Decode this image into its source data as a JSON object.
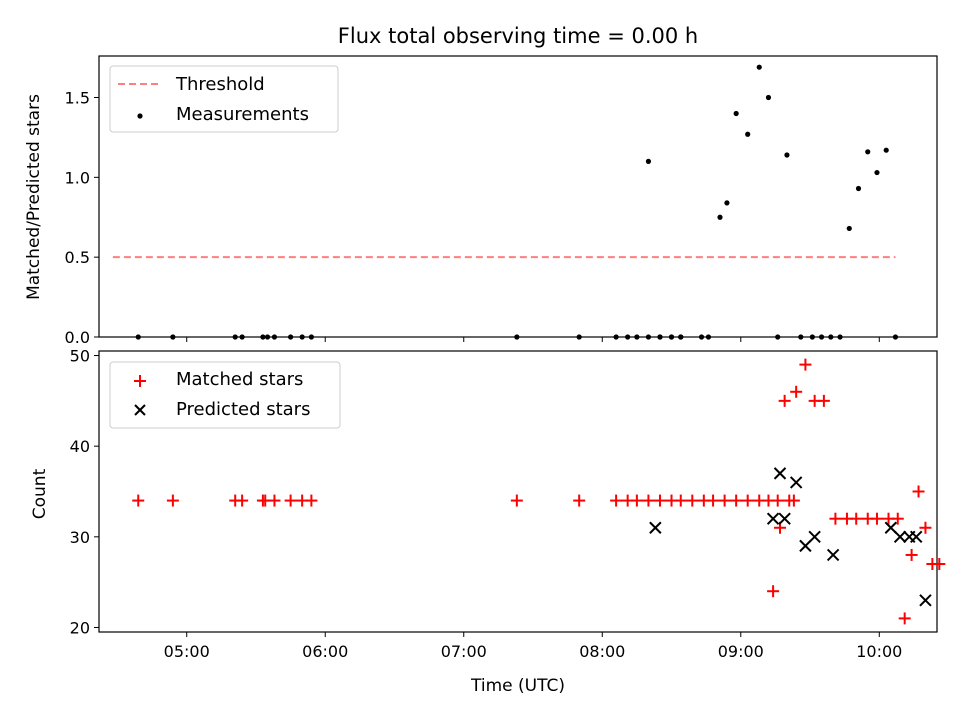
{
  "colors": {
    "threshold": "#ff7f7f",
    "measurement": "#000000",
    "matched": "#ff0000",
    "predicted": "#000000"
  },
  "chart_data": [
    {
      "type": "scatter",
      "title": "Flux total observing time = 0.00 h",
      "xlabel": "",
      "ylabel": "Matched/Predicted stars",
      "xlim": [
        "04:22",
        "10:25"
      ],
      "ylim": [
        0,
        1.76
      ],
      "yticks": [
        "0.0",
        "0.5",
        "1.0",
        "1.5"
      ],
      "ytick_values": [
        0,
        0.5,
        1.0,
        1.5
      ],
      "legend": {
        "placement": "upper left",
        "entries": [
          "Threshold",
          "Measurements"
        ]
      },
      "threshold": {
        "name": "Threshold",
        "y": 0.5,
        "x_range": [
          "04:28",
          "10:07"
        ]
      },
      "series": [
        {
          "name": "Measurements",
          "points": [
            [
              "04:39",
              0
            ],
            [
              "04:54",
              0
            ],
            [
              "05:21",
              0
            ],
            [
              "05:24",
              0
            ],
            [
              "05:33",
              0
            ],
            [
              "05:35",
              0
            ],
            [
              "05:38",
              0
            ],
            [
              "05:45",
              0
            ],
            [
              "05:50",
              0
            ],
            [
              "05:54",
              0
            ],
            [
              "07:23",
              0
            ],
            [
              "07:50",
              0
            ],
            [
              "08:06",
              0
            ],
            [
              "08:11",
              0
            ],
            [
              "08:15",
              0
            ],
            [
              "08:20",
              0
            ],
            [
              "08:25",
              0
            ],
            [
              "08:30",
              0
            ],
            [
              "08:34",
              0
            ],
            [
              "08:20",
              1.1
            ],
            [
              "08:25",
              0
            ],
            [
              "08:30",
              0
            ],
            [
              "08:34",
              0
            ],
            [
              "08:43",
              0
            ],
            [
              "08:46",
              0
            ],
            [
              "08:51",
              0.75
            ],
            [
              "08:54",
              0.84
            ],
            [
              "08:58",
              1.4
            ],
            [
              "09:03",
              1.27
            ],
            [
              "09:08",
              1.69
            ],
            [
              "09:12",
              1.5
            ],
            [
              "09:16",
              0
            ],
            [
              "09:20",
              1.14
            ],
            [
              "09:26",
              0
            ],
            [
              "09:31",
              0
            ],
            [
              "09:35",
              0
            ],
            [
              "09:39",
              0
            ],
            [
              "09:43",
              0
            ],
            [
              "09:47",
              0.68
            ],
            [
              "09:51",
              0.93
            ],
            [
              "09:55",
              1.16
            ],
            [
              "09:59",
              1.03
            ],
            [
              "10:03",
              1.17
            ],
            [
              "10:07",
              0
            ]
          ]
        }
      ]
    },
    {
      "type": "scatter",
      "title": "",
      "xlabel": "Time (UTC)",
      "ylabel": "Count",
      "xlim": [
        "04:22",
        "10:25"
      ],
      "ylim": [
        19.5,
        50.5
      ],
      "yticks": [
        "20",
        "30",
        "40",
        "50"
      ],
      "ytick_values": [
        20,
        30,
        40,
        50
      ],
      "xticks": [
        "05:00",
        "06:00",
        "07:00",
        "08:00",
        "09:00",
        "10:00"
      ],
      "legend": {
        "placement": "upper left",
        "entries": [
          "Matched stars",
          "Predicted stars"
        ]
      },
      "series": [
        {
          "name": "Matched stars",
          "marker": "+",
          "points": [
            [
              "04:39",
              34
            ],
            [
              "04:54",
              34
            ],
            [
              "05:21",
              34
            ],
            [
              "05:24",
              34
            ],
            [
              "05:33",
              34
            ],
            [
              "05:34",
              34
            ],
            [
              "05:38",
              34
            ],
            [
              "05:45",
              34
            ],
            [
              "05:50",
              34
            ],
            [
              "05:54",
              34
            ],
            [
              "07:23",
              34
            ],
            [
              "07:50",
              34
            ],
            [
              "08:06",
              34
            ],
            [
              "08:11",
              34
            ],
            [
              "08:15",
              34
            ],
            [
              "08:20",
              34
            ],
            [
              "08:25",
              34
            ],
            [
              "08:30",
              34
            ],
            [
              "08:34",
              34
            ],
            [
              "08:39",
              34
            ],
            [
              "08:44",
              34
            ],
            [
              "08:48",
              34
            ],
            [
              "08:53",
              34
            ],
            [
              "08:58",
              34
            ],
            [
              "09:03",
              34
            ],
            [
              "09:08",
              34
            ],
            [
              "09:12",
              34
            ],
            [
              "09:16",
              34
            ],
            [
              "09:21",
              34
            ],
            [
              "09:23",
              34
            ],
            [
              "09:14",
              24
            ],
            [
              "09:17",
              31
            ],
            [
              "09:19",
              45
            ],
            [
              "09:24",
              46
            ],
            [
              "09:28",
              49
            ],
            [
              "09:32",
              45
            ],
            [
              "09:36",
              45
            ],
            [
              "09:41",
              32
            ],
            [
              "09:46",
              32
            ],
            [
              "09:50",
              32
            ],
            [
              "09:55",
              32
            ],
            [
              "09:59",
              32
            ],
            [
              "10:04",
              32
            ],
            [
              "10:08",
              32
            ],
            [
              "10:11",
              21
            ],
            [
              "10:14",
              28
            ],
            [
              "10:17",
              35
            ],
            [
              "10:20",
              31
            ],
            [
              "10:23",
              27
            ],
            [
              "10:26",
              27
            ]
          ]
        },
        {
          "name": "Predicted stars",
          "marker": "x",
          "points": [
            [
              "08:23",
              31
            ],
            [
              "09:14",
              32
            ],
            [
              "09:17",
              37
            ],
            [
              "09:19",
              32
            ],
            [
              "09:24",
              36
            ],
            [
              "09:28",
              29
            ],
            [
              "09:32",
              30
            ],
            [
              "09:40",
              28
            ],
            [
              "10:05",
              31
            ],
            [
              "10:09",
              30
            ],
            [
              "10:13",
              30
            ],
            [
              "10:16",
              30
            ],
            [
              "10:20",
              23
            ]
          ]
        }
      ]
    }
  ]
}
